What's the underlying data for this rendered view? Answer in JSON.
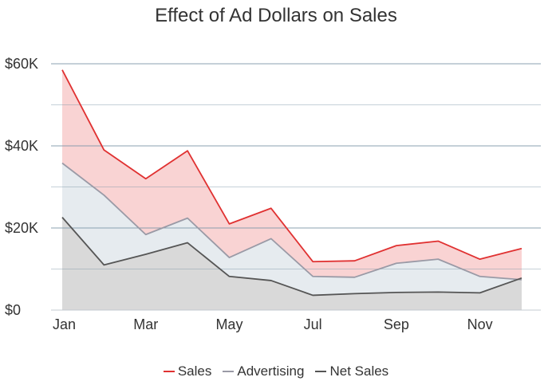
{
  "chart_data": {
    "type": "area",
    "title": "Effect of Ad Dollars on Sales",
    "xlabel": "",
    "ylabel": "",
    "x": [
      "Jan",
      "Feb",
      "Mar",
      "Apr",
      "May",
      "Jun",
      "Jul",
      "Aug",
      "Sep",
      "Oct",
      "Nov",
      "Dec"
    ],
    "x_tick_labels": [
      "Jan",
      "Mar",
      "May",
      "Jul",
      "Sep",
      "Nov"
    ],
    "y_tick_labels": [
      "$0",
      "$20K",
      "$40K",
      "$60K"
    ],
    "ylim": [
      0,
      60000
    ],
    "grid": true,
    "legend_position": "bottom",
    "series": [
      {
        "name": "Sales",
        "color": "#e03131",
        "fill": "#f9d3d3",
        "values": [
          58500,
          39000,
          32000,
          38800,
          21000,
          24800,
          11800,
          12000,
          15700,
          16800,
          12400,
          15000
        ]
      },
      {
        "name": "Advertising",
        "color": "#9a9aa6",
        "fill": "#e6ebef",
        "values": [
          35800,
          28000,
          18400,
          22400,
          12800,
          17400,
          8200,
          8000,
          11400,
          12400,
          8200,
          7400
        ]
      },
      {
        "name": "Net Sales",
        "color": "#555555",
        "fill": "#d9d9d9",
        "values": [
          22600,
          11000,
          13600,
          16400,
          8200,
          7200,
          3600,
          4000,
          4300,
          4400,
          4200,
          7800
        ]
      }
    ]
  }
}
